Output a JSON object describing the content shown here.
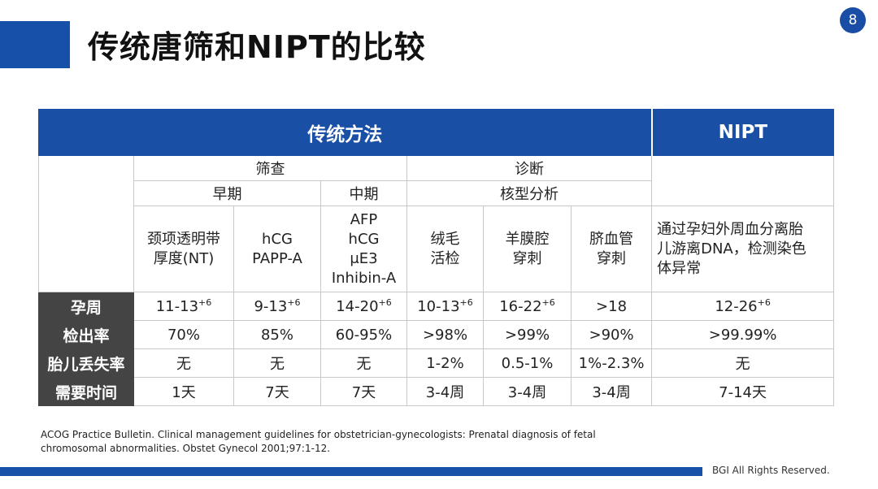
{
  "slide": {
    "title": "传统唐筛和NIPT的比较",
    "page_number": "8",
    "reference": "ACOG Practice Bulletin. Clinical management guidelines for obstetrician-gynecologists: Prenatal diagnosis of fetal chromosomal abnormalities. Obstet Gynecol 2001;97:1-12.",
    "footer": "BGI All Rights Reserved.",
    "accent_color": "#1a4fa6",
    "label_bg_color": "#444444"
  },
  "table": {
    "header_traditional": "传统方法",
    "header_nipt": "NIPT",
    "group_screening": "筛查",
    "group_diagnosis": "诊断",
    "sub_early": "早期",
    "sub_mid": "中期",
    "sub_karyotype": "核型分析",
    "methods": [
      {
        "lines": [
          "颈项透明带",
          "厚度(NT)"
        ]
      },
      {
        "lines": [
          "hCG",
          "PAPP-A"
        ]
      },
      {
        "lines": [
          "AFP",
          "hCG",
          "μE3",
          "Inhibin-A"
        ]
      },
      {
        "lines": [
          "绒毛",
          "活检"
        ]
      },
      {
        "lines": [
          "羊膜腔",
          "穿刺"
        ]
      },
      {
        "lines": [
          "脐血管",
          "穿刺"
        ]
      },
      {
        "lines": [
          "通过孕妇外周血分离胎",
          "儿游离DNA，检测染色",
          "体异常"
        ]
      }
    ],
    "rows": [
      {
        "label": "孕周",
        "cells": [
          {
            "text": "11-13",
            "sup": "+6"
          },
          {
            "text": "9-13",
            "sup": "+6"
          },
          {
            "text": "14-20",
            "sup": "+6"
          },
          {
            "text": "10-13",
            "sup": "+6"
          },
          {
            "text": "16-22",
            "sup": "+6"
          },
          {
            "text": ">18"
          },
          {
            "text": "12-26",
            "sup": "+6"
          }
        ]
      },
      {
        "label": "检出率",
        "cells": [
          {
            "text": "70%"
          },
          {
            "text": "85%"
          },
          {
            "text": "60-95%"
          },
          {
            "text": ">98%"
          },
          {
            "text": ">99%"
          },
          {
            "text": ">90%"
          },
          {
            "text": ">99.99%"
          }
        ]
      },
      {
        "label": "胎儿丢失率",
        "cells": [
          {
            "text": "无"
          },
          {
            "text": "无"
          },
          {
            "text": "无"
          },
          {
            "text": "1-2%"
          },
          {
            "text": "0.5-1%"
          },
          {
            "text": "1%-2.3%"
          },
          {
            "text": "无"
          }
        ]
      },
      {
        "label": "需要时间",
        "cells": [
          {
            "text": "1天"
          },
          {
            "text": "7天"
          },
          {
            "text": "7天"
          },
          {
            "text": "3-4周"
          },
          {
            "text": "3-4周"
          },
          {
            "text": "3-4周"
          },
          {
            "text": "7-14天"
          }
        ]
      }
    ]
  }
}
